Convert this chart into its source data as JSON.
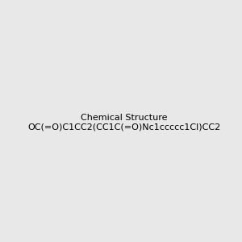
{
  "smiles": "OC(=O)C1CC2(CC1C(=O)Nc1ccccc1Cl)CC2",
  "image_size": 300,
  "background_color": "#e8e8e8"
}
